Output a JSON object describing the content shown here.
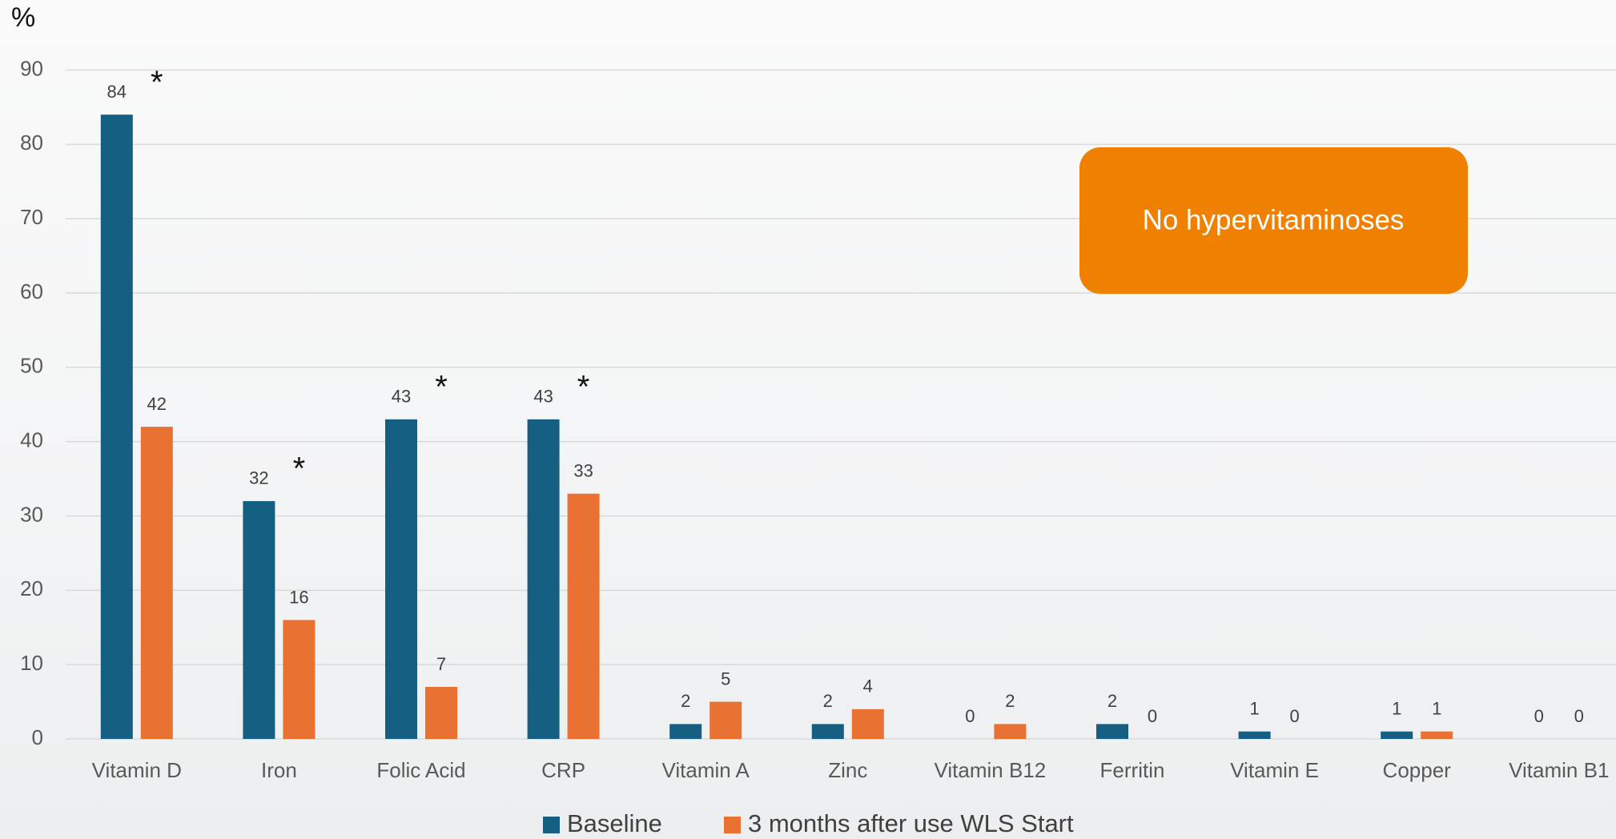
{
  "chart_data": {
    "type": "bar",
    "y_label": "%",
    "categories": [
      "Vitamin D",
      "Iron",
      "Folic Acid",
      "CRP",
      "Vitamin A",
      "Zinc",
      "Vitamin B12",
      "Ferritin",
      "Vitamin E",
      "Copper",
      "Vitamin B1"
    ],
    "series": [
      {
        "name": "Baseline",
        "color": "#156082",
        "values": [
          84,
          32,
          43,
          43,
          2,
          2,
          0,
          2,
          1,
          1,
          0
        ]
      },
      {
        "name": "3 months after use WLS Start",
        "color": "#e97132",
        "values": [
          42,
          16,
          7,
          33,
          5,
          4,
          2,
          0,
          0,
          1,
          0
        ]
      }
    ],
    "significance_markers": [
      "*",
      "*",
      "*",
      "*",
      null,
      null,
      null,
      null,
      null,
      null,
      null
    ],
    "annotation": {
      "text": "No hypervitaminoses",
      "color": "#f08000"
    },
    "ylim": [
      0,
      90
    ],
    "yticks": [
      0,
      10,
      20,
      30,
      40,
      50,
      60,
      70,
      80,
      90
    ],
    "grid": true,
    "legend": "bottom"
  }
}
